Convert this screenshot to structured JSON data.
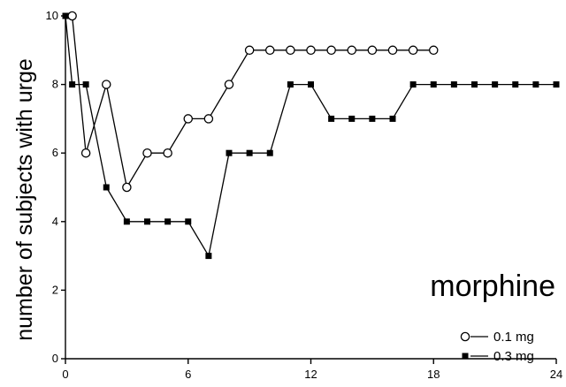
{
  "chart_data": {
    "type": "line",
    "title": "",
    "xlabel": "",
    "ylabel": "number of subjects with urge",
    "annotation": "morphine",
    "xlim": [
      0,
      24
    ],
    "ylim": [
      0,
      10
    ],
    "x_ticks": [
      0,
      6,
      12,
      18,
      24
    ],
    "y_ticks": [
      0,
      2,
      4,
      6,
      8,
      10
    ],
    "grid": false,
    "legend_position": "bottom-right",
    "series": [
      {
        "name": "0.1 mg",
        "marker": "open-circle",
        "color": "#000000",
        "x": [
          0.33,
          1,
          2,
          3,
          4,
          5,
          6,
          7,
          8,
          9,
          10,
          11,
          12,
          13,
          14,
          15,
          16,
          17,
          18
        ],
        "y": [
          10,
          6,
          8,
          5,
          6,
          6,
          7,
          7,
          8,
          9,
          9,
          9,
          9,
          9,
          9,
          9,
          9,
          9,
          9
        ]
      },
      {
        "name": "0.3 mg",
        "marker": "filled-square",
        "color": "#000000",
        "x": [
          0,
          0.33,
          1,
          2,
          3,
          4,
          5,
          6,
          7,
          8,
          9,
          10,
          11,
          12,
          13,
          14,
          15,
          16,
          17,
          18,
          19,
          20,
          21,
          22,
          23,
          24
        ],
        "y": [
          10,
          8,
          8,
          5,
          4,
          4,
          4,
          4,
          3,
          6,
          6,
          6,
          8,
          8,
          7,
          7,
          7,
          7,
          8,
          8,
          8,
          8,
          8,
          8,
          8,
          8
        ]
      }
    ]
  }
}
